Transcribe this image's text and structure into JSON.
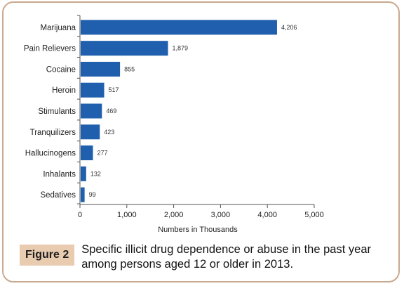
{
  "chart_data": {
    "type": "bar",
    "orientation": "horizontal",
    "categories": [
      "Marijuana",
      "Pain Relievers",
      "Cocaine",
      "Heroin",
      "Stimulants",
      "Tranquilizers",
      "Hallucinogens",
      "Inhalants",
      "Sedatives"
    ],
    "values": [
      4206,
      1879,
      855,
      517,
      469,
      423,
      277,
      132,
      99
    ],
    "value_labels": [
      "4,206",
      "1,879",
      "855",
      "517",
      "469",
      "423",
      "277",
      "132",
      "99"
    ],
    "xlabel": "Numbers in Thousands",
    "ylabel": "",
    "xlim": [
      0,
      5000
    ],
    "xticks": [
      0,
      1000,
      2000,
      3000,
      4000,
      5000
    ],
    "xtick_labels": [
      "0",
      "1,000",
      "2,000",
      "3,000",
      "4,000",
      "5,000"
    ],
    "bar_color": "#1f5fad",
    "grid": false,
    "legend": "none"
  },
  "caption": {
    "label": "Figure 2",
    "text": "Specific illicit drug dependence or abuse in the past year among persons aged 12 or older in 2013."
  },
  "colors": {
    "frame_border": "#c9a98f",
    "badge_background": "#e9cbb0"
  }
}
